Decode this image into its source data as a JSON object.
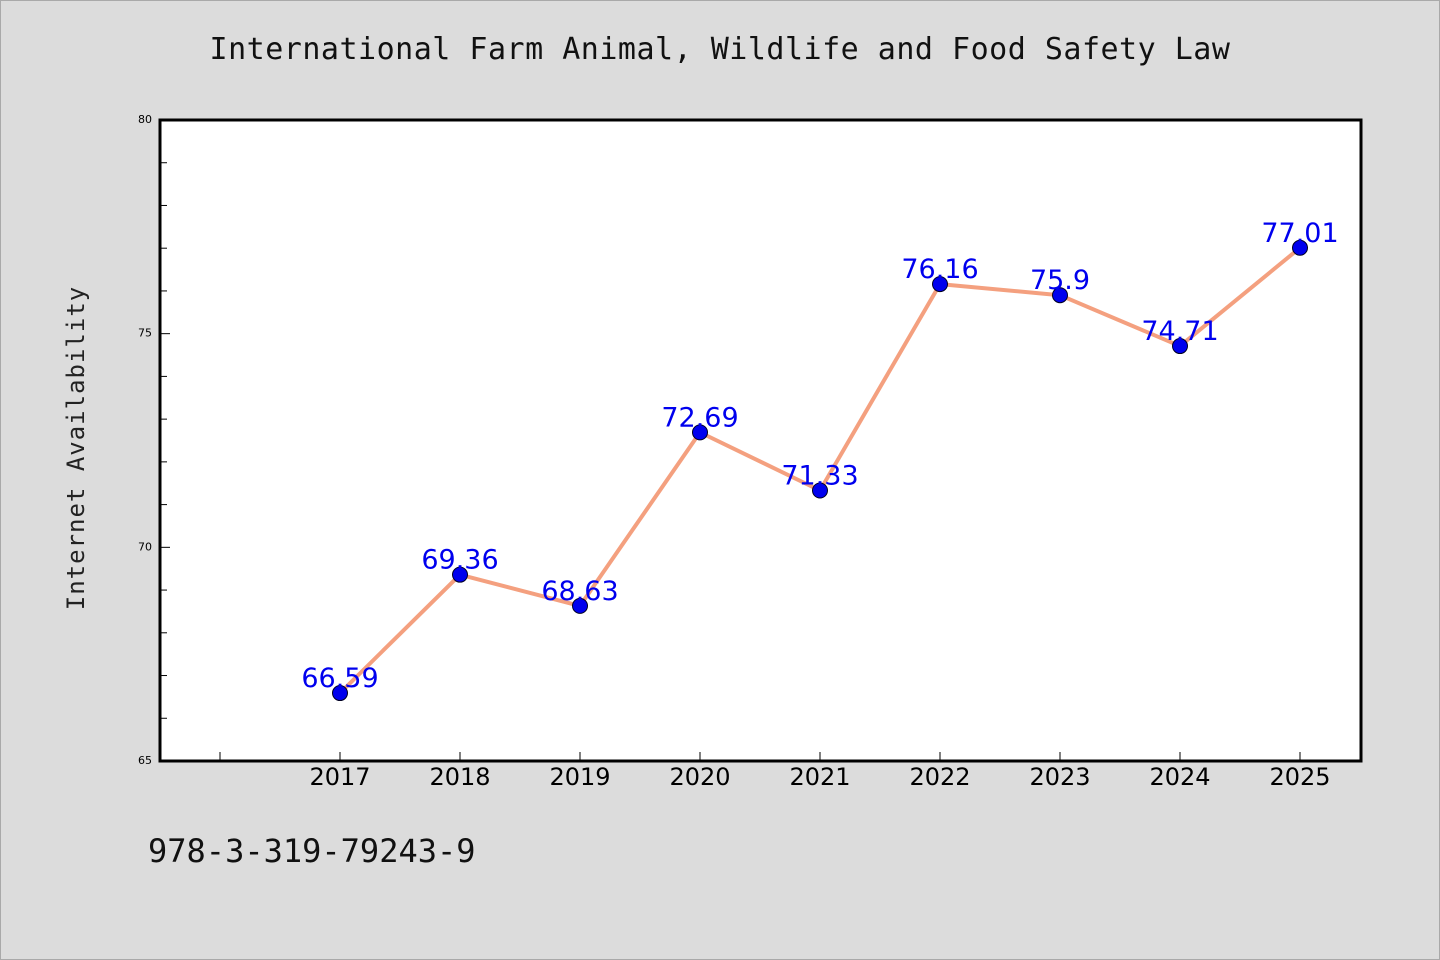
{
  "chart_data": {
    "type": "line",
    "title": "International Farm Animal, Wildlife and Food Safety Law",
    "ylabel": "Internet Availability",
    "xlabel": "",
    "categories": [
      "2017",
      "2018",
      "2019",
      "2020",
      "2021",
      "2022",
      "2023",
      "2024",
      "2025"
    ],
    "values": [
      66.59,
      69.36,
      68.63,
      72.69,
      71.33,
      76.16,
      75.9,
      74.71,
      77.01
    ],
    "data_labels": [
      "66.59",
      "69.36",
      "68.63",
      "72.69",
      "71.33",
      "76.16",
      "75.9",
      "74.71",
      "77.01"
    ],
    "ylim": [
      65,
      80
    ],
    "yticks": [
      65,
      70,
      75,
      80
    ],
    "ytick_labels": [
      "65",
      "70",
      "75",
      "80"
    ],
    "grid": false,
    "legend": "none",
    "colors": {
      "line": "#f4a07f",
      "marker": "#0000ee",
      "label": "#0000ee",
      "background": "#dcdcdc",
      "plot_background": "#ffffff"
    }
  },
  "footer": {
    "code": "978-3-319-79243-9"
  }
}
